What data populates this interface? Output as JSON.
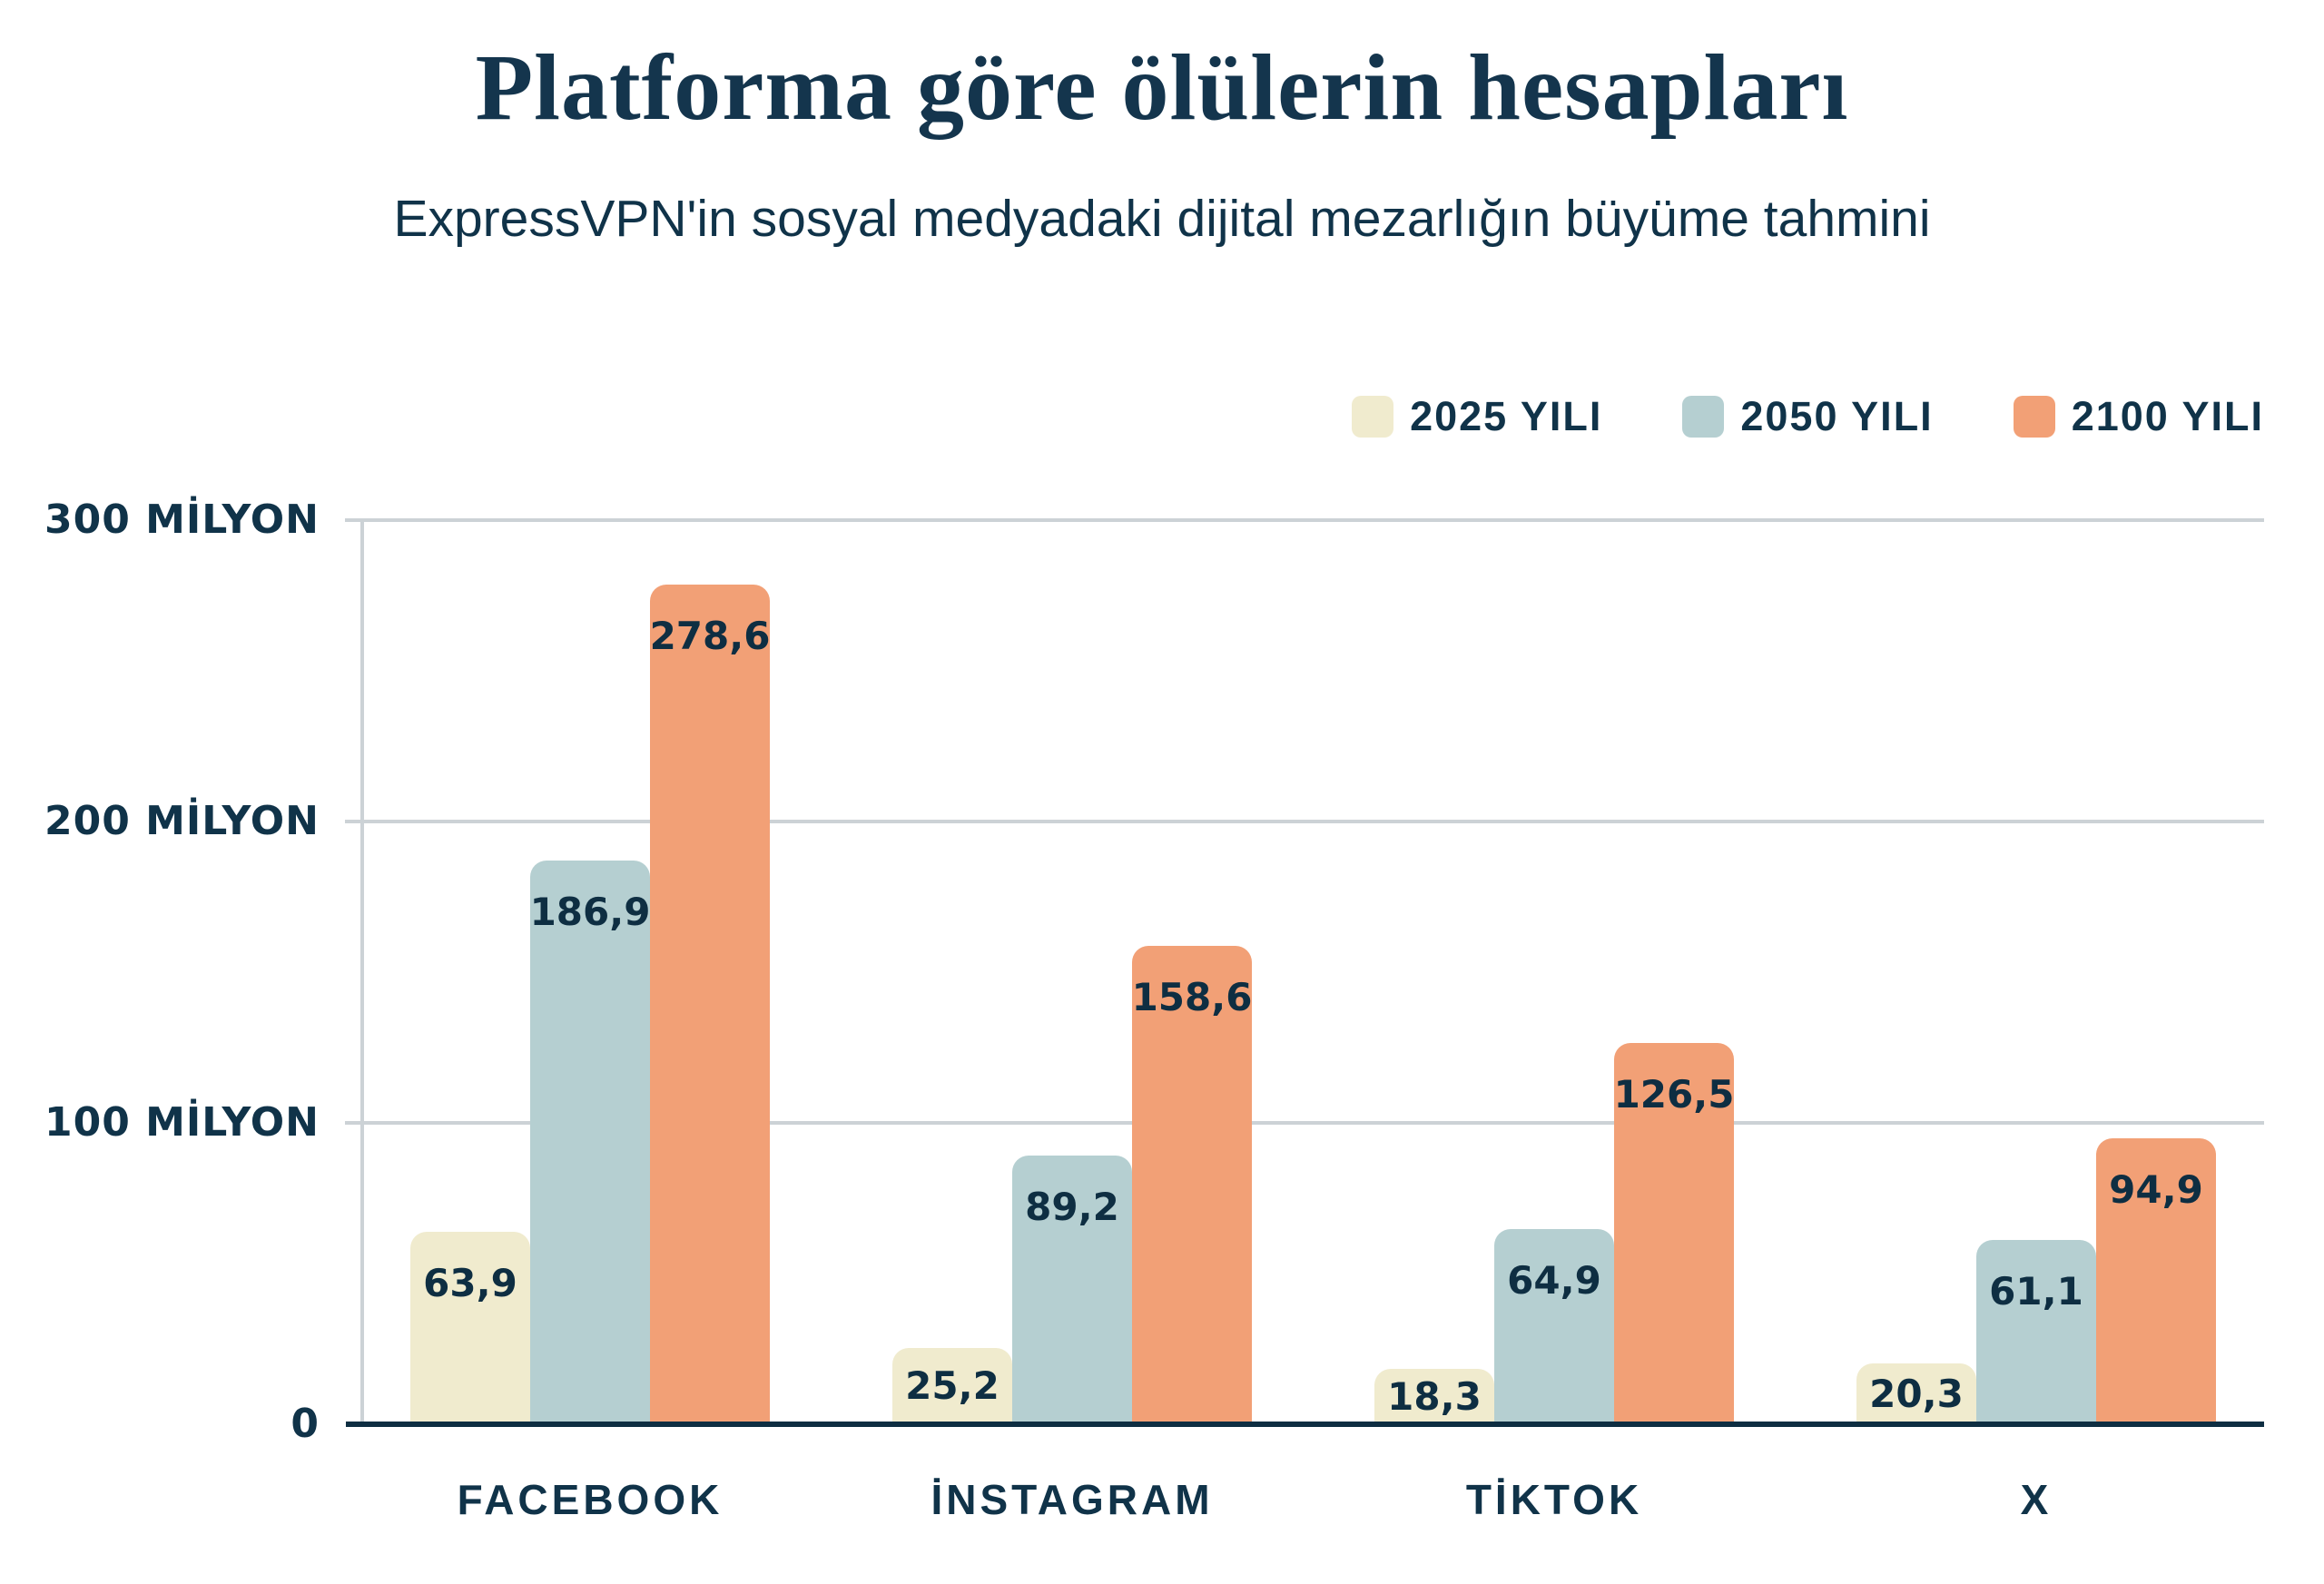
{
  "chart": {
    "title": "Platforma göre ölülerin hesapları",
    "subtitle": "ExpressVPN'in sosyal medyadaki dijital mezarlığın büyüme tahmini"
  },
  "colors": {
    "background": "#ffffff",
    "text_navy": "#103349",
    "title_navy": "#14354d",
    "grid_gray": "#ccd2d6",
    "baseline_navy": "#0e2e42",
    "series_2025": "#f0ebce",
    "series_2050": "#b5cfd1",
    "series_2100": "#f2a076"
  },
  "chart_data": {
    "type": "bar",
    "title": "Platforma göre ölülerin hesapları",
    "subtitle": "ExpressVPN'in sosyal medyadaki dijital mezarlığın büyüme tahmini",
    "categories": [
      "FACEBOOK",
      "İNSTAGRAM",
      "TİKTOK",
      "X"
    ],
    "series": [
      {
        "name": "2025 YILI",
        "color": "#f0ebce",
        "values": [
          63.9,
          25.2,
          18.3,
          20.3
        ]
      },
      {
        "name": "2050 YILI",
        "color": "#b5cfd1",
        "values": [
          186.9,
          89.2,
          64.9,
          61.1
        ]
      },
      {
        "name": "2100 YILI",
        "color": "#f2a076",
        "values": [
          278.6,
          158.6,
          126.5,
          94.9
        ]
      }
    ],
    "decimal_separator": ",",
    "value_labels_visible": true,
    "y_axis": {
      "min": 0,
      "max": 300,
      "ticks": [
        {
          "value": 0,
          "label": "0"
        },
        {
          "value": 100,
          "label": "100 MİLYON"
        },
        {
          "value": 200,
          "label": "200 MİLYON"
        },
        {
          "value": 300,
          "label": "300 MİLYON"
        }
      ]
    },
    "grid": true,
    "legend_position": "top-right"
  }
}
